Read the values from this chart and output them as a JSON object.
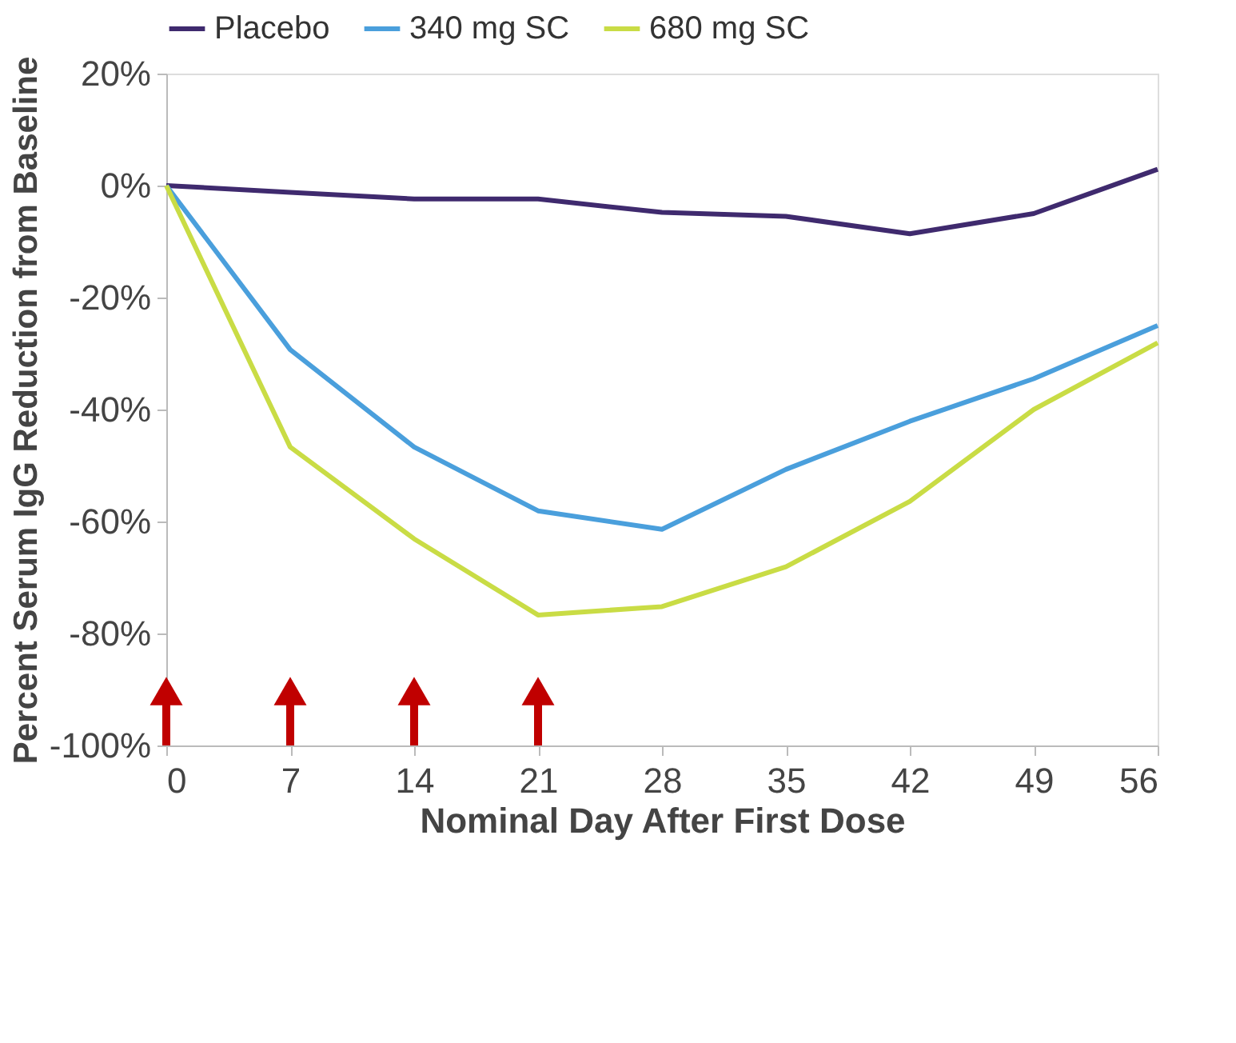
{
  "chart_data": {
    "type": "line",
    "xlabel": "Nominal Day After First Dose",
    "ylabel": "Percent Serum IgG Reduction from Baseline",
    "x": [
      0,
      7,
      14,
      21,
      28,
      35,
      42,
      49,
      56
    ],
    "series": [
      {
        "name": "Placebo",
        "color": "#3f2a6e",
        "values": [
          0,
          -1.2,
          -2.4,
          -2.4,
          -4.8,
          -5.5,
          -8.6,
          -5,
          2.9
        ]
      },
      {
        "name": "340 mg SC",
        "color": "#4a9fdc",
        "values": [
          0,
          -29.3,
          -46.7,
          -58.1,
          -61.4,
          -50.7,
          -42.1,
          -34.5,
          -25
        ]
      },
      {
        "name": "680 mg SC",
        "color": "#c9dc45",
        "values": [
          0,
          -46.7,
          -63.1,
          -76.7,
          -75.2,
          -68.1,
          -56.4,
          -40,
          -28.1
        ]
      }
    ],
    "xlim": [
      0,
      56
    ],
    "xticks": [
      0,
      7,
      14,
      21,
      28,
      35,
      42,
      49,
      56
    ],
    "ylim": [
      -100,
      20
    ],
    "yticks": [
      {
        "value": -100,
        "label": "-100%"
      },
      {
        "value": -80,
        "label": "-80%"
      },
      {
        "value": -60,
        "label": "-60%"
      },
      {
        "value": -40,
        "label": "-40%"
      },
      {
        "value": -20,
        "label": "-20%"
      },
      {
        "value": 0,
        "label": "0%"
      },
      {
        "value": 20,
        "label": "20%"
      }
    ],
    "grid": false,
    "legend": "top",
    "marker": "none",
    "line_style": "solid"
  }
}
